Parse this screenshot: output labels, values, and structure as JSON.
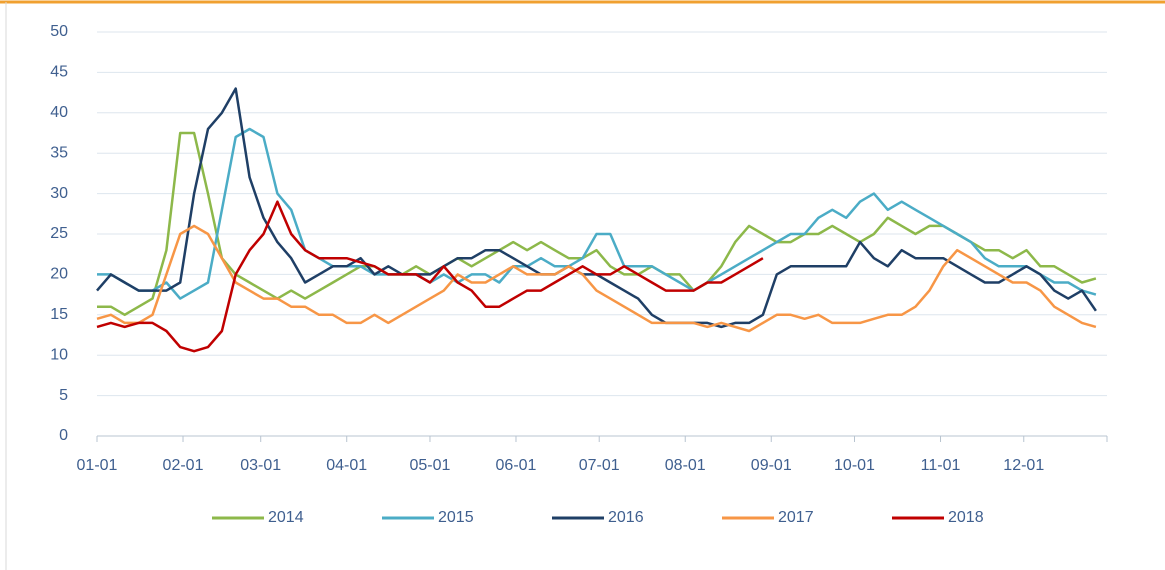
{
  "chart_data": {
    "type": "line",
    "x": [
      0,
      5,
      10,
      15,
      20,
      25,
      30,
      35,
      40,
      45,
      50,
      55,
      60,
      65,
      70,
      75,
      80,
      85,
      90,
      95,
      100,
      105,
      110,
      115,
      120,
      125,
      130,
      135,
      140,
      145,
      150,
      155,
      160,
      165,
      170,
      175,
      180,
      185,
      190,
      195,
      200,
      205,
      210,
      215,
      220,
      225,
      230,
      235,
      240,
      245,
      250,
      255,
      260,
      265,
      270,
      275,
      280,
      285,
      290,
      295,
      300,
      305,
      310,
      315,
      320,
      325,
      330,
      335,
      340,
      345,
      350,
      355,
      360
    ],
    "xlim": [
      0,
      364
    ],
    "xticks": [
      {
        "value": 0,
        "label": "01-01"
      },
      {
        "value": 31,
        "label": "02-01"
      },
      {
        "value": 59,
        "label": "03-01"
      },
      {
        "value": 90,
        "label": "04-01"
      },
      {
        "value": 120,
        "label": "05-01"
      },
      {
        "value": 151,
        "label": "06-01"
      },
      {
        "value": 181,
        "label": "07-01"
      },
      {
        "value": 212,
        "label": "08-01"
      },
      {
        "value": 243,
        "label": "09-01"
      },
      {
        "value": 273,
        "label": "10-01"
      },
      {
        "value": 304,
        "label": "11-01"
      },
      {
        "value": 334,
        "label": "12-01"
      }
    ],
    "ylim": [
      0,
      50
    ],
    "yticks": [
      0,
      5,
      10,
      15,
      20,
      25,
      30,
      35,
      40,
      45,
      50
    ],
    "grid": true,
    "legend": "bottom",
    "series": [
      {
        "name": "2014",
        "color": "#8db84a",
        "values": [
          16,
          16,
          15,
          16,
          17,
          23,
          37.5,
          37.5,
          30,
          22,
          20,
          19,
          18,
          17,
          18,
          17,
          18,
          19,
          20,
          21,
          21,
          20,
          20,
          21,
          20,
          21,
          22,
          21,
          22,
          23,
          24,
          23,
          24,
          23,
          22,
          22,
          23,
          21,
          20,
          20,
          21,
          20,
          20,
          18,
          19,
          21,
          24,
          26,
          25,
          24,
          24,
          25,
          25,
          26,
          25,
          24,
          25,
          27,
          26,
          25,
          26,
          26,
          25,
          24,
          23,
          23,
          22,
          23,
          21,
          21,
          20,
          19,
          19.5
        ]
      },
      {
        "name": "2015",
        "color": "#4bacc6",
        "values": [
          20,
          20,
          19,
          18,
          18,
          19,
          17,
          18,
          19,
          28,
          37,
          38,
          37,
          30,
          28,
          23,
          22,
          21,
          21,
          21,
          20,
          20,
          20,
          20,
          19,
          20,
          19,
          20,
          20,
          19,
          21,
          21,
          22,
          21,
          21,
          22,
          25,
          25,
          21,
          21,
          21,
          20,
          19,
          18,
          19,
          20,
          21,
          22,
          23,
          24,
          25,
          25,
          27,
          28,
          27,
          29,
          30,
          28,
          29,
          28,
          27,
          26,
          25,
          24,
          22,
          21,
          21,
          21,
          20,
          19,
          19,
          18,
          17.5
        ]
      },
      {
        "name": "2016",
        "color": "#1f3f66",
        "values": [
          18,
          20,
          19,
          18,
          18,
          18,
          19,
          30,
          38,
          40,
          43,
          32,
          27,
          24,
          22,
          19,
          20,
          21,
          21,
          22,
          20,
          21,
          20,
          20,
          20,
          21,
          22,
          22,
          23,
          23,
          22,
          21,
          20,
          20,
          21,
          20,
          20,
          19,
          18,
          17,
          15,
          14,
          14,
          14,
          14,
          13.5,
          14,
          14,
          15,
          20,
          21,
          21,
          21,
          21,
          21,
          24,
          22,
          21,
          23,
          22,
          22,
          22,
          21,
          20,
          19,
          19,
          20,
          21,
          20,
          18,
          17,
          18,
          15.5
        ]
      },
      {
        "name": "2017",
        "color": "#f79646",
        "values": [
          14.5,
          15,
          14,
          14,
          15,
          20,
          25,
          26,
          25,
          22,
          19,
          18,
          17,
          17,
          16,
          16,
          15,
          15,
          14,
          14,
          15,
          14,
          15,
          16,
          17,
          18,
          20,
          19,
          19,
          20,
          21,
          20,
          20,
          20,
          21,
          20,
          18,
          17,
          16,
          15,
          14,
          14,
          14,
          14,
          13.5,
          14,
          13.5,
          13,
          14,
          15,
          15,
          14.5,
          15,
          14,
          14,
          14,
          14.5,
          15,
          15,
          16,
          18,
          21,
          23,
          22,
          21,
          20,
          19,
          19,
          18,
          16,
          15,
          14,
          13.5
        ]
      },
      {
        "name": "2018",
        "color": "#c00000",
        "values": [
          13.5,
          14,
          13.5,
          14,
          14,
          13,
          11,
          10.5,
          11,
          13,
          20,
          23,
          25,
          29,
          25,
          23,
          22,
          22,
          22,
          21.5,
          21,
          20,
          20,
          20,
          19,
          21,
          19,
          18,
          16,
          16,
          17,
          18,
          18,
          19,
          20,
          21,
          20,
          20,
          21,
          20,
          19,
          18,
          18,
          18,
          19,
          19,
          20,
          21,
          22,
          null,
          null,
          null,
          null,
          null,
          null,
          null,
          null,
          null,
          null,
          null,
          null,
          null,
          null,
          null,
          null,
          null,
          null,
          null,
          null,
          null,
          null,
          null,
          null
        ]
      }
    ]
  }
}
